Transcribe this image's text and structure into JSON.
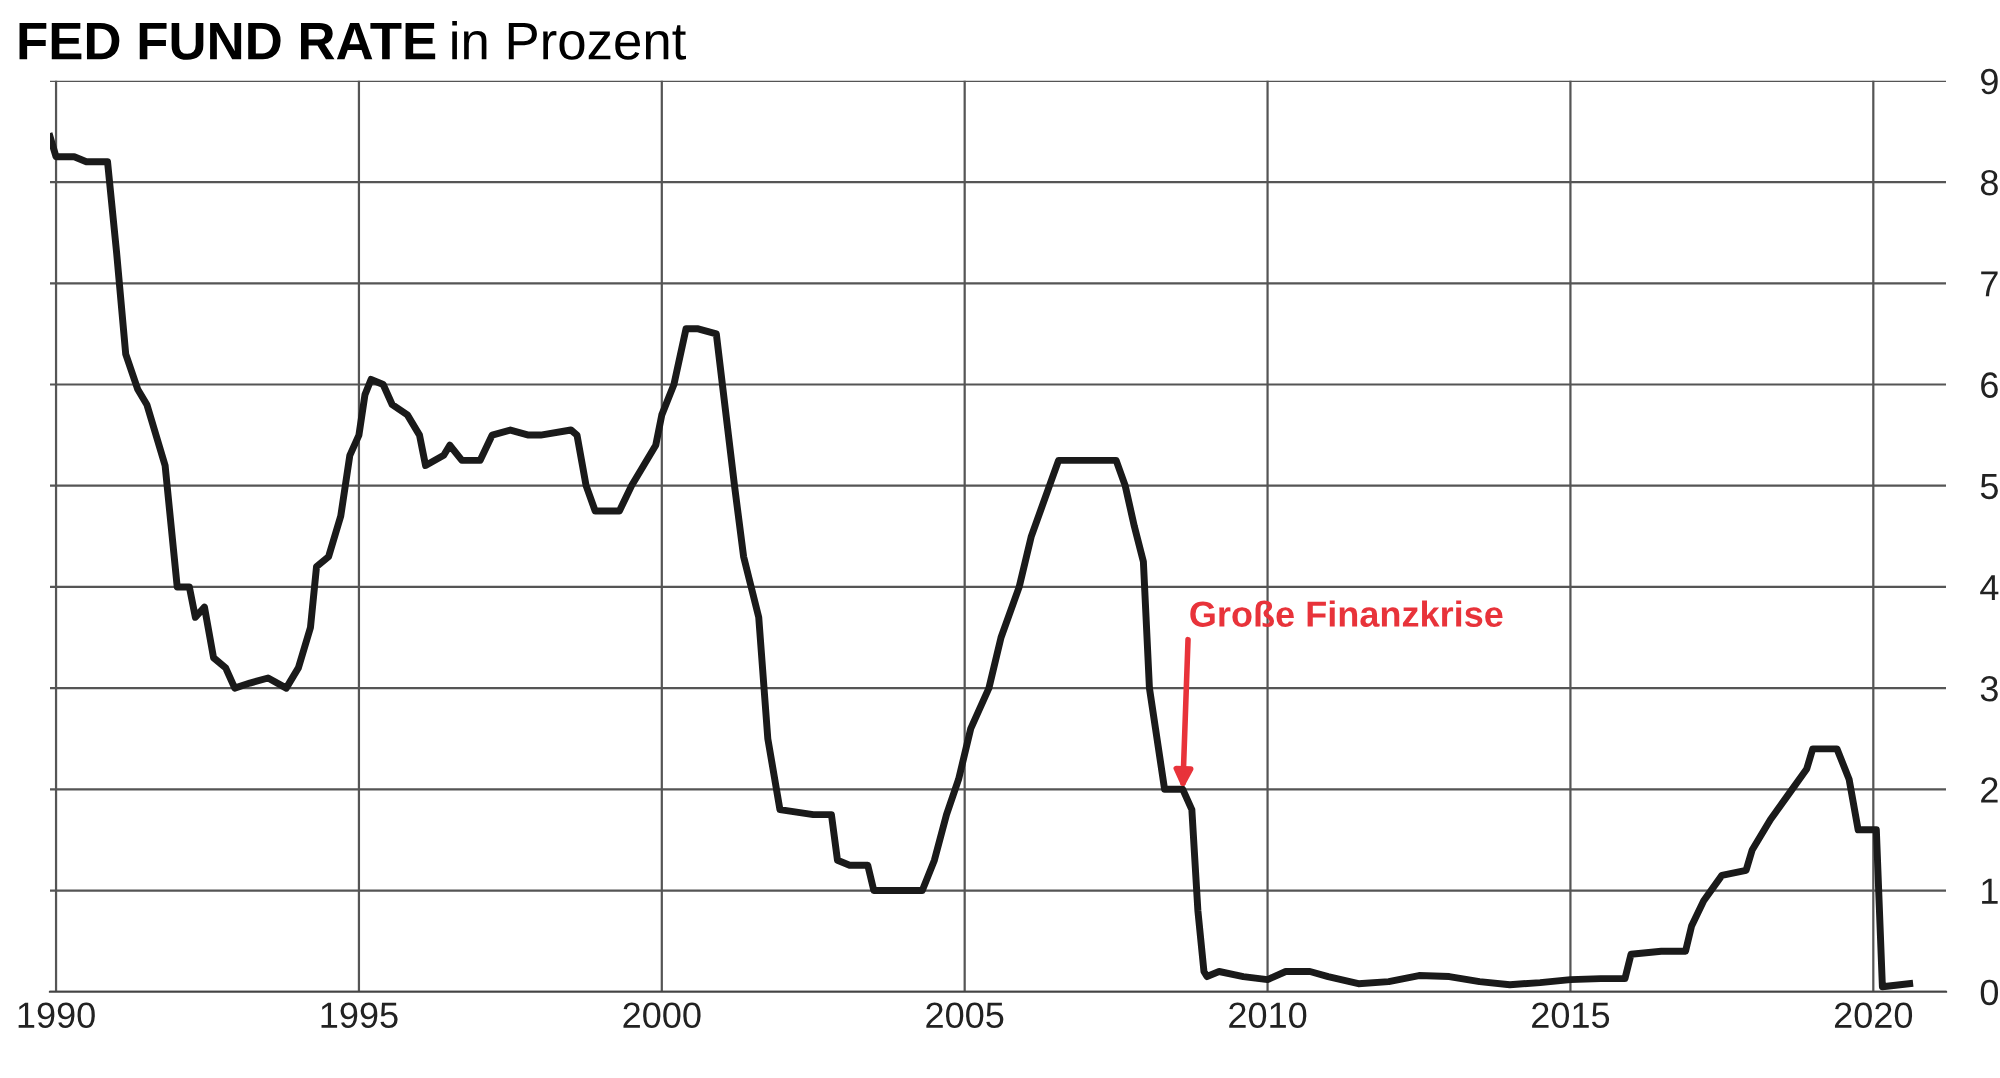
{
  "chart_data": {
    "type": "line",
    "title": "FED FUND RATE",
    "subtitle": "in Prozent",
    "x": [
      1989.9,
      1990.0,
      1990.3,
      1990.5,
      1990.85,
      1991.0,
      1991.15,
      1991.35,
      1991.5,
      1991.8,
      1992.0,
      1992.2,
      1992.3,
      1992.45,
      1992.6,
      1992.8,
      1992.95,
      1993.2,
      1993.5,
      1993.8,
      1994.0,
      1994.2,
      1994.3,
      1994.5,
      1994.7,
      1994.85,
      1995.0,
      1995.1,
      1995.2,
      1995.4,
      1995.55,
      1995.8,
      1996.0,
      1996.1,
      1996.4,
      1996.5,
      1996.7,
      1997.0,
      1997.2,
      1997.5,
      1997.8,
      1998.0,
      1998.5,
      1998.6,
      1998.75,
      1998.9,
      1999.1,
      1999.3,
      1999.5,
      1999.7,
      1999.9,
      2000.0,
      2000.2,
      2000.4,
      2000.6,
      2000.9,
      2001.0,
      2001.2,
      2001.35,
      2001.6,
      2001.75,
      2001.95,
      2002.5,
      2002.8,
      2002.9,
      2003.1,
      2003.4,
      2003.5,
      2003.9,
      2004.3,
      2004.5,
      2004.7,
      2004.9,
      2005.1,
      2005.4,
      2005.6,
      2005.9,
      2006.1,
      2006.4,
      2006.55,
      2007.0,
      2007.5,
      2007.65,
      2007.8,
      2007.95,
      2008.05,
      2008.15,
      2008.3,
      2008.6,
      2008.75,
      2008.85,
      2008.95,
      2009.0,
      2009.2,
      2009.6,
      2010.0,
      2010.3,
      2010.7,
      2011.0,
      2011.5,
      2012.0,
      2012.5,
      2013.0,
      2013.5,
      2014.0,
      2014.5,
      2015.0,
      2015.5,
      2015.9,
      2016.0,
      2016.5,
      2016.9,
      2017.0,
      2017.2,
      2017.5,
      2017.9,
      2018.0,
      2018.3,
      2018.6,
      2018.9,
      2019.0,
      2019.4,
      2019.6,
      2019.75,
      2020.05,
      2020.15,
      2020.6
    ],
    "series": [
      {
        "color": "#1a1a1a",
        "values": [
          8.45,
          8.25,
          8.25,
          8.2,
          8.2,
          7.3,
          6.3,
          5.95,
          5.8,
          5.2,
          4.0,
          4.0,
          3.7,
          3.8,
          3.3,
          3.2,
          3.0,
          3.05,
          3.1,
          3.0,
          3.2,
          3.6,
          4.2,
          4.3,
          4.7,
          5.3,
          5.5,
          5.9,
          6.05,
          6.0,
          5.8,
          5.7,
          5.5,
          5.2,
          5.3,
          5.4,
          5.25,
          5.25,
          5.5,
          5.55,
          5.5,
          5.5,
          5.55,
          5.5,
          5.0,
          4.75,
          4.75,
          4.75,
          5.0,
          5.2,
          5.4,
          5.7,
          6.0,
          6.55,
          6.55,
          6.5,
          6.0,
          5.0,
          4.3,
          3.7,
          2.5,
          1.8,
          1.75,
          1.75,
          1.3,
          1.25,
          1.25,
          1.0,
          1.0,
          1.0,
          1.3,
          1.75,
          2.1,
          2.6,
          3.0,
          3.5,
          4.0,
          4.5,
          5.0,
          5.25,
          5.25,
          5.25,
          5.0,
          4.6,
          4.25,
          3.0,
          2.6,
          2.0,
          2.0,
          1.8,
          0.8,
          0.2,
          0.15,
          0.2,
          0.15,
          0.12,
          0.2,
          0.2,
          0.15,
          0.08,
          0.1,
          0.16,
          0.15,
          0.1,
          0.07,
          0.09,
          0.12,
          0.13,
          0.13,
          0.37,
          0.4,
          0.4,
          0.65,
          0.9,
          1.15,
          1.2,
          1.4,
          1.7,
          1.95,
          2.2,
          2.4,
          2.4,
          2.1,
          1.6,
          1.6,
          0.05,
          0.08
        ]
      }
    ],
    "xlim": [
      1989.9,
      2021.2
    ],
    "xticks": [
      1990,
      1995,
      2000,
      2005,
      2010,
      2015,
      2020
    ],
    "ylim": [
      0,
      9
    ],
    "yticks": [
      0,
      1,
      2,
      3,
      4,
      5,
      6,
      7,
      8,
      9
    ],
    "grid": true,
    "line_style": "solid",
    "marker": "none",
    "annotations": [
      {
        "text": "Große Finanzkrise",
        "x": 2008.6,
        "y": 2.0
      }
    ]
  }
}
